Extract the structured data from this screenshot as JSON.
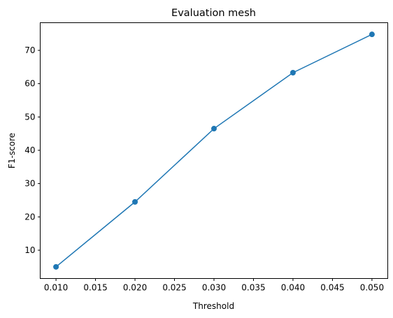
{
  "chart_data": {
    "type": "line",
    "title": "Evaluation mesh",
    "xlabel": "Threshold",
    "ylabel": "F1-score",
    "x": [
      0.01,
      0.02,
      0.03,
      0.04,
      0.05
    ],
    "series": [
      {
        "values": [
          5.0,
          24.5,
          46.5,
          63.3,
          74.8
        ],
        "color": "#1f77b4",
        "marker": "circle"
      }
    ],
    "xlim": [
      0.008,
      0.052
    ],
    "ylim": [
      1.5,
      78.3
    ],
    "xticks": [
      "0.010",
      "0.015",
      "0.020",
      "0.025",
      "0.030",
      "0.035",
      "0.040",
      "0.045",
      "0.050"
    ],
    "xtick_values": [
      0.01,
      0.015,
      0.02,
      0.025,
      0.03,
      0.035,
      0.04,
      0.045,
      0.05
    ],
    "yticks": [
      "10",
      "20",
      "30",
      "40",
      "50",
      "60",
      "70"
    ],
    "ytick_values": [
      10,
      20,
      30,
      40,
      50,
      60,
      70
    ],
    "grid": false,
    "legend": null
  }
}
